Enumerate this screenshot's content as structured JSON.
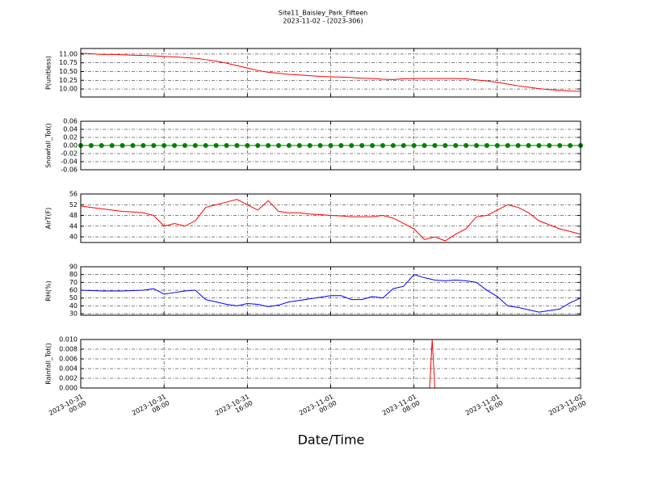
{
  "figure": {
    "title": "Site11_Baisley_Park_Fifteen",
    "subtitle": "2023-11-02 - (2023-306)",
    "xlabel": "Date/Time",
    "xlim": [
      "2023-10-31 00:00",
      "2023-11-02 00:00"
    ],
    "xticks": [
      "2023-10-31 00:00",
      "2023-10-31 08:00",
      "2023-10-31 16:00",
      "2023-11-01 00:00",
      "2023-11-01 08:00",
      "2023-11-01 16:00",
      "2023-11-02 00:00"
    ]
  },
  "chart_data": [
    {
      "type": "line",
      "ylabel": "P(unitless)",
      "color": "#ff0000",
      "x": [
        "2023-10-31 00:00",
        "2023-10-31 01:00",
        "2023-10-31 02:00",
        "2023-10-31 03:00",
        "2023-10-31 04:00",
        "2023-10-31 05:00",
        "2023-10-31 06:00",
        "2023-10-31 07:00",
        "2023-10-31 08:00",
        "2023-10-31 09:00",
        "2023-10-31 10:00",
        "2023-10-31 11:00",
        "2023-10-31 12:00",
        "2023-10-31 13:00",
        "2023-10-31 14:00",
        "2023-10-31 15:00",
        "2023-10-31 16:00",
        "2023-10-31 17:00",
        "2023-10-31 18:00",
        "2023-10-31 19:00",
        "2023-10-31 20:00",
        "2023-10-31 21:00",
        "2023-10-31 22:00",
        "2023-10-31 23:00",
        "2023-11-01 00:00",
        "2023-11-01 01:00",
        "2023-11-01 02:00",
        "2023-11-01 03:00",
        "2023-11-01 04:00",
        "2023-11-01 05:00",
        "2023-11-01 06:00",
        "2023-11-01 07:00",
        "2023-11-01 08:00",
        "2023-11-01 09:00",
        "2023-11-01 10:00",
        "2023-11-01 11:00",
        "2023-11-01 12:00",
        "2023-11-01 13:00",
        "2023-11-01 14:00",
        "2023-11-01 15:00",
        "2023-11-01 16:00",
        "2023-11-01 17:00",
        "2023-11-01 18:00",
        "2023-11-01 19:00",
        "2023-11-01 20:00",
        "2023-11-01 21:00",
        "2023-11-01 22:00",
        "2023-11-01 23:00",
        "2023-11-02 00:00"
      ],
      "values": [
        11.02,
        11.01,
        10.99,
        10.99,
        10.98,
        10.97,
        10.96,
        10.95,
        10.93,
        10.92,
        10.9,
        10.88,
        10.84,
        10.8,
        10.74,
        10.67,
        10.6,
        10.53,
        10.48,
        10.45,
        10.42,
        10.4,
        10.38,
        10.36,
        10.35,
        10.34,
        10.33,
        10.31,
        10.3,
        10.28,
        10.27,
        10.29,
        10.3,
        10.3,
        10.3,
        10.3,
        10.3,
        10.29,
        10.26,
        10.23,
        10.19,
        10.14,
        10.09,
        10.05,
        10.01,
        9.98,
        9.96,
        9.94,
        9.93
      ],
      "ylim": [
        9.77,
        11.16
      ],
      "yticks": [
        {
          "value": 10,
          "label": "10.00"
        },
        {
          "value": 10.25,
          "label": "10.25"
        },
        {
          "value": 10.5,
          "label": "10.50"
        },
        {
          "value": 10.75,
          "label": "10.75"
        },
        {
          "value": 11,
          "label": "11.00"
        }
      ],
      "grid": true
    },
    {
      "type": "line",
      "ylabel": "Snowfall_Tot()",
      "color": "#008000",
      "marker": "o",
      "x": [
        "2023-10-31 00:00",
        "2023-10-31 01:00",
        "2023-10-31 02:00",
        "2023-10-31 03:00",
        "2023-10-31 04:00",
        "2023-10-31 05:00",
        "2023-10-31 06:00",
        "2023-10-31 07:00",
        "2023-10-31 08:00",
        "2023-10-31 09:00",
        "2023-10-31 10:00",
        "2023-10-31 11:00",
        "2023-10-31 12:00",
        "2023-10-31 13:00",
        "2023-10-31 14:00",
        "2023-10-31 15:00",
        "2023-10-31 16:00",
        "2023-10-31 17:00",
        "2023-10-31 18:00",
        "2023-10-31 19:00",
        "2023-10-31 20:00",
        "2023-10-31 21:00",
        "2023-10-31 22:00",
        "2023-10-31 23:00",
        "2023-11-01 00:00",
        "2023-11-01 01:00",
        "2023-11-01 02:00",
        "2023-11-01 03:00",
        "2023-11-01 04:00",
        "2023-11-01 05:00",
        "2023-11-01 06:00",
        "2023-11-01 07:00",
        "2023-11-01 08:00",
        "2023-11-01 09:00",
        "2023-11-01 10:00",
        "2023-11-01 11:00",
        "2023-11-01 12:00",
        "2023-11-01 13:00",
        "2023-11-01 14:00",
        "2023-11-01 15:00",
        "2023-11-01 16:00",
        "2023-11-01 17:00",
        "2023-11-01 18:00",
        "2023-11-01 19:00",
        "2023-11-01 20:00",
        "2023-11-01 21:00",
        "2023-11-01 22:00",
        "2023-11-01 23:00",
        "2023-11-02 00:00"
      ],
      "values": [
        0,
        0,
        0,
        0,
        0,
        0,
        0,
        0,
        0,
        0,
        0,
        0,
        0,
        0,
        0,
        0,
        0,
        0,
        0,
        0,
        0,
        0,
        0,
        0,
        0,
        0,
        0,
        0,
        0,
        0,
        0,
        0,
        0,
        0,
        0,
        0,
        0,
        0,
        0,
        0,
        0,
        0,
        0,
        0,
        0,
        0,
        0,
        0,
        0
      ],
      "ylim": [
        -0.06,
        0.06
      ],
      "yticks": [
        {
          "value": -0.06,
          "label": "-0.06"
        },
        {
          "value": -0.04,
          "label": "-0.04"
        },
        {
          "value": -0.02,
          "label": "-0.02"
        },
        {
          "value": 0,
          "label": "0.00"
        },
        {
          "value": 0.02,
          "label": "0.02"
        },
        {
          "value": 0.04,
          "label": "0.04"
        },
        {
          "value": 0.06,
          "label": "0.06"
        }
      ],
      "grid": true
    },
    {
      "type": "line",
      "ylabel": "AirT(F)",
      "color": "#ff0000",
      "x": [
        "2023-10-31 00:00",
        "2023-10-31 01:00",
        "2023-10-31 02:00",
        "2023-10-31 03:00",
        "2023-10-31 04:00",
        "2023-10-31 05:00",
        "2023-10-31 06:00",
        "2023-10-31 07:00",
        "2023-10-31 08:00",
        "2023-10-31 09:00",
        "2023-10-31 10:00",
        "2023-10-31 11:00",
        "2023-10-31 12:00",
        "2023-10-31 13:00",
        "2023-10-31 14:00",
        "2023-10-31 15:00",
        "2023-10-31 16:00",
        "2023-10-31 17:00",
        "2023-10-31 18:00",
        "2023-10-31 19:00",
        "2023-10-31 20:00",
        "2023-10-31 21:00",
        "2023-10-31 22:00",
        "2023-10-31 23:00",
        "2023-11-01 00:00",
        "2023-11-01 01:00",
        "2023-11-01 02:00",
        "2023-11-01 03:00",
        "2023-11-01 04:00",
        "2023-11-01 05:00",
        "2023-11-01 06:00",
        "2023-11-01 07:00",
        "2023-11-01 08:00",
        "2023-11-01 09:00",
        "2023-11-01 10:00",
        "2023-11-01 11:00",
        "2023-11-01 12:00",
        "2023-11-01 13:00",
        "2023-11-01 14:00",
        "2023-11-01 15:00",
        "2023-11-01 16:00",
        "2023-11-01 17:00",
        "2023-11-01 18:00",
        "2023-11-01 19:00",
        "2023-11-01 20:00",
        "2023-11-01 21:00",
        "2023-11-01 22:00",
        "2023-11-01 23:00",
        "2023-11-02 00:00"
      ],
      "values": [
        51.5,
        51,
        50.5,
        50,
        49.5,
        49.3,
        49,
        48,
        44,
        45,
        44,
        46,
        51,
        52,
        53,
        54,
        52,
        50,
        53.5,
        49.5,
        49,
        49,
        48.5,
        48.3,
        48,
        47.8,
        47.5,
        47.5,
        47.5,
        48,
        47,
        45,
        43,
        39,
        40,
        38.5,
        41,
        43,
        47.5,
        48,
        50,
        52,
        51,
        49,
        46,
        44.5,
        43,
        42,
        41
      ],
      "ylim": [
        37.9,
        56
      ],
      "yticks": [
        40,
        44,
        48,
        52,
        56
      ],
      "grid": true
    },
    {
      "type": "line",
      "ylabel": "RH(%)",
      "color": "#0000ff",
      "x": [
        "2023-10-31 00:00",
        "2023-10-31 01:00",
        "2023-10-31 02:00",
        "2023-10-31 03:00",
        "2023-10-31 04:00",
        "2023-10-31 05:00",
        "2023-10-31 06:00",
        "2023-10-31 07:00",
        "2023-10-31 08:00",
        "2023-10-31 09:00",
        "2023-10-31 10:00",
        "2023-10-31 11:00",
        "2023-10-31 12:00",
        "2023-10-31 13:00",
        "2023-10-31 14:00",
        "2023-10-31 15:00",
        "2023-10-31 16:00",
        "2023-10-31 17:00",
        "2023-10-31 18:00",
        "2023-10-31 19:00",
        "2023-10-31 20:00",
        "2023-10-31 21:00",
        "2023-10-31 22:00",
        "2023-10-31 23:00",
        "2023-11-01 00:00",
        "2023-11-01 01:00",
        "2023-11-01 02:00",
        "2023-11-01 03:00",
        "2023-11-01 04:00",
        "2023-11-01 05:00",
        "2023-11-01 06:00",
        "2023-11-01 07:00",
        "2023-11-01 08:00",
        "2023-11-01 09:00",
        "2023-11-01 10:00",
        "2023-11-01 11:00",
        "2023-11-01 12:00",
        "2023-11-01 13:00",
        "2023-11-01 14:00",
        "2023-11-01 15:00",
        "2023-11-01 16:00",
        "2023-11-01 17:00",
        "2023-11-01 18:00",
        "2023-11-01 19:00",
        "2023-11-01 20:00",
        "2023-11-01 21:00",
        "2023-11-01 22:00",
        "2023-11-01 23:00",
        "2023-11-02 00:00"
      ],
      "values": [
        60,
        59.5,
        59,
        59,
        59,
        59.5,
        60,
        62,
        55,
        57,
        59,
        60,
        48,
        45,
        42,
        40,
        43,
        42,
        39,
        41,
        45,
        47,
        49,
        51,
        53,
        53,
        48,
        48,
        52,
        50,
        62,
        65,
        80,
        76,
        73,
        72,
        73,
        72,
        70,
        60,
        52,
        40,
        38,
        35,
        32,
        34,
        36,
        44,
        50
      ],
      "ylim": [
        28,
        90
      ],
      "yticks": [
        30,
        40,
        50,
        60,
        70,
        80,
        90
      ],
      "grid": true
    },
    {
      "type": "line",
      "ylabel": "Rainfall_Tot()",
      "color": "#ff0000",
      "x": [
        "2023-10-31 00:00",
        "2023-11-01 09:30",
        "2023-11-01 09:45",
        "2023-11-01 10:00",
        "2023-11-02 00:00"
      ],
      "values": [
        0,
        0,
        0.01,
        0,
        0
      ],
      "ylim": [
        0,
        0.01
      ],
      "yticks": [
        {
          "value": 0,
          "label": "0.000"
        },
        {
          "value": 0.002,
          "label": "0.002"
        },
        {
          "value": 0.004,
          "label": "0.004"
        },
        {
          "value": 0.006,
          "label": "0.006"
        },
        {
          "value": 0.008,
          "label": "0.008"
        },
        {
          "value": 0.01,
          "label": "0.010"
        }
      ],
      "grid": true
    }
  ]
}
